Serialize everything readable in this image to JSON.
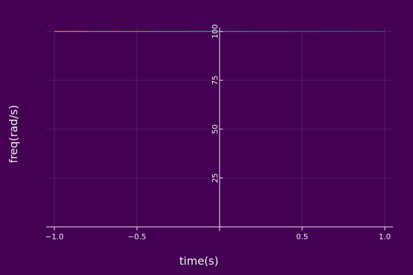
{
  "chart_data": {
    "type": "heatmap",
    "title": "",
    "xlabel": "time(s)",
    "ylabel": "freq(rad/s)",
    "xlim": [
      -1.05,
      1.05
    ],
    "ylim": [
      0,
      102
    ],
    "x_ticks": [
      -1.0,
      -0.5,
      0.5,
      1.0
    ],
    "x_tick_labels": [
      "−1.0",
      "−0.5",
      "0.5",
      "1.0"
    ],
    "y_ticks": [
      25,
      50,
      75,
      100
    ],
    "y_tick_labels": [
      "25",
      "50",
      "75",
      "100"
    ],
    "grid": true,
    "legend": "none",
    "background_color": "#440154",
    "axis_color": "#f2f2f2",
    "series": [
      {
        "x": [
          -1.0,
          -0.8,
          -0.6,
          -0.4,
          -0.2,
          0.0,
          0.2,
          0.4,
          0.6,
          0.8,
          1.0
        ],
        "y": [
          100,
          100,
          100,
          100,
          100,
          100,
          100,
          100,
          100,
          100,
          100
        ],
        "colors": [
          "#f0a030",
          "#9ab02a",
          "#6cb63b",
          "#4cb86a",
          "#35b07c",
          "#26a486",
          "#21938b",
          "#21838d",
          "#2a788e",
          "#30688e",
          "#31628c"
        ]
      }
    ]
  }
}
